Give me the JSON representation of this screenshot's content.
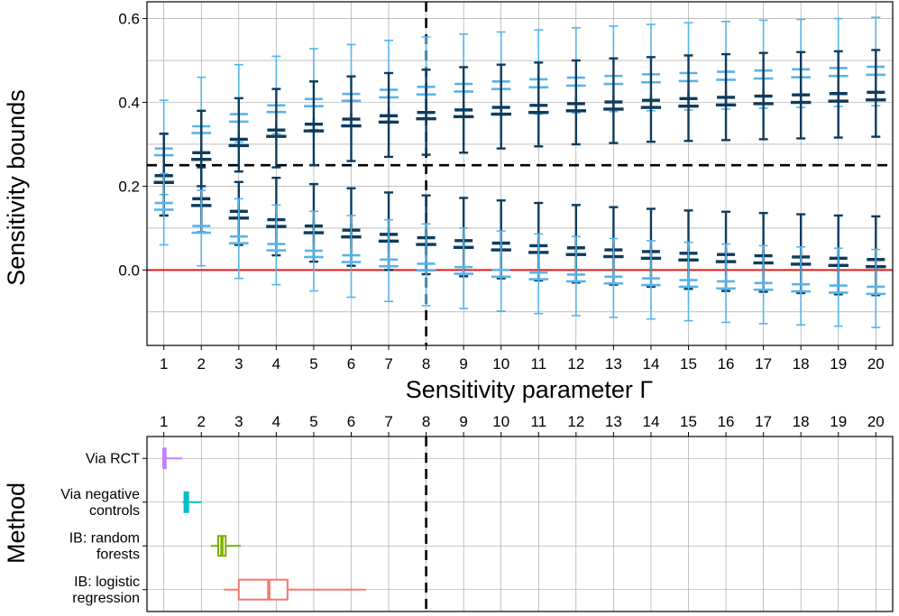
{
  "colors": {
    "dark_series": "#0d3b5c",
    "light_series": "#56b4e9",
    "zero_line": "#e31a1c",
    "reference_line": "#000000",
    "grid": "#9a9a9a",
    "method_colors": [
      "#c77cff",
      "#00bfc4",
      "#7cae00",
      "#f8766d"
    ]
  },
  "chart_data": [
    {
      "type": "box",
      "ylabel": "Sensitivity bounds",
      "xlabel": "Sensitivity parameter Γ",
      "x": [
        1,
        2,
        3,
        4,
        5,
        6,
        7,
        8,
        9,
        10,
        11,
        12,
        13,
        14,
        15,
        16,
        17,
        18,
        19,
        20
      ],
      "xlim": [
        0.55,
        20.45
      ],
      "ylim": [
        -0.18,
        0.64
      ],
      "yticks": [
        0.0,
        0.2,
        0.4,
        0.6
      ],
      "ytick_labels": [
        "0.0",
        "0.2",
        "0.4",
        "0.6"
      ],
      "grid": true,
      "horizontal_lines": [
        {
          "y": 0.0,
          "style": "solid",
          "color": "#e31a1c"
        },
        {
          "y": 0.25,
          "style": "dashed",
          "color": "#000000"
        }
      ],
      "vertical_lines": [
        {
          "x": 8,
          "style": "dashed",
          "color": "#000000"
        }
      ],
      "series": [
        {
          "group": "upper",
          "color": "#56b4e9",
          "boxes": [
            [
              0.405,
              0.275,
              0.29,
              0.305,
              0.18
            ],
            [
              0.46,
              0.328,
              0.343,
              0.358,
              0.28
            ],
            [
              0.49,
              0.355,
              0.372,
              0.388,
              0.305
            ],
            [
              0.51,
              0.378,
              0.393,
              0.41,
              0.325
            ],
            [
              0.528,
              0.392,
              0.408,
              0.425,
              0.335
            ],
            [
              0.538,
              0.405,
              0.42,
              0.438,
              0.345
            ],
            [
              0.548,
              0.413,
              0.43,
              0.447,
              0.355
            ],
            [
              0.556,
              0.42,
              0.437,
              0.455,
              0.36
            ],
            [
              0.563,
              0.427,
              0.444,
              0.462,
              0.365
            ],
            [
              0.568,
              0.433,
              0.45,
              0.468,
              0.37
            ],
            [
              0.573,
              0.437,
              0.455,
              0.473,
              0.372
            ],
            [
              0.578,
              0.441,
              0.459,
              0.477,
              0.375
            ],
            [
              0.582,
              0.445,
              0.463,
              0.481,
              0.378
            ],
            [
              0.586,
              0.449,
              0.467,
              0.485,
              0.38
            ],
            [
              0.59,
              0.452,
              0.47,
              0.488,
              0.382
            ],
            [
              0.593,
              0.455,
              0.473,
              0.491,
              0.384
            ],
            [
              0.596,
              0.458,
              0.476,
              0.495,
              0.386
            ],
            [
              0.598,
              0.461,
              0.479,
              0.498,
              0.388
            ],
            [
              0.6,
              0.464,
              0.482,
              0.501,
              0.39
            ],
            [
              0.603,
              0.467,
              0.485,
              0.505,
              0.392
            ]
          ]
        },
        {
          "group": "upper",
          "color": "#0d3b5c",
          "boxes": [
            [
              0.325,
              0.21,
              0.225,
              0.24,
              0.13
            ],
            [
              0.38,
              0.265,
              0.28,
              0.295,
              0.2
            ],
            [
              0.41,
              0.298,
              0.312,
              0.327,
              0.235
            ],
            [
              0.432,
              0.32,
              0.334,
              0.35,
              0.245
            ],
            [
              0.45,
              0.333,
              0.348,
              0.363,
              0.25
            ],
            [
              0.462,
              0.345,
              0.36,
              0.375,
              0.26
            ],
            [
              0.47,
              0.354,
              0.368,
              0.385,
              0.27
            ],
            [
              0.478,
              0.362,
              0.376,
              0.392,
              0.275
            ],
            [
              0.484,
              0.367,
              0.382,
              0.398,
              0.28
            ],
            [
              0.49,
              0.373,
              0.388,
              0.404,
              0.29
            ],
            [
              0.495,
              0.377,
              0.393,
              0.408,
              0.295
            ],
            [
              0.5,
              0.381,
              0.397,
              0.412,
              0.3
            ],
            [
              0.505,
              0.385,
              0.401,
              0.416,
              0.303
            ],
            [
              0.508,
              0.389,
              0.405,
              0.42,
              0.306
            ],
            [
              0.512,
              0.392,
              0.409,
              0.424,
              0.308
            ],
            [
              0.515,
              0.395,
              0.412,
              0.427,
              0.31
            ],
            [
              0.518,
              0.398,
              0.415,
              0.43,
              0.312
            ],
            [
              0.52,
              0.401,
              0.418,
              0.433,
              0.314
            ],
            [
              0.522,
              0.404,
              0.421,
              0.436,
              0.316
            ],
            [
              0.525,
              0.407,
              0.424,
              0.44,
              0.318
            ]
          ]
        },
        {
          "group": "lower",
          "color": "#0d3b5c",
          "boxes": [
            [
              0.325,
              0.21,
              0.225,
              0.24,
              0.13
            ],
            [
              0.245,
              0.155,
              0.17,
              0.185,
              0.09
            ],
            [
              0.21,
              0.125,
              0.14,
              0.155,
              0.06
            ],
            [
              0.22,
              0.105,
              0.12,
              0.135,
              0.035
            ],
            [
              0.205,
              0.09,
              0.105,
              0.12,
              0.02
            ],
            [
              0.195,
              0.08,
              0.095,
              0.11,
              0.01
            ],
            [
              0.185,
              0.07,
              0.085,
              0.1,
              0.0
            ],
            [
              0.178,
              0.062,
              0.077,
              0.093,
              -0.01
            ],
            [
              0.172,
              0.055,
              0.07,
              0.086,
              -0.015
            ],
            [
              0.166,
              0.049,
              0.064,
              0.08,
              -0.02
            ],
            [
              0.16,
              0.043,
              0.058,
              0.074,
              -0.025
            ],
            [
              0.155,
              0.038,
              0.053,
              0.069,
              -0.03
            ],
            [
              0.15,
              0.033,
              0.048,
              0.064,
              -0.035
            ],
            [
              0.146,
              0.029,
              0.044,
              0.06,
              -0.04
            ],
            [
              0.142,
              0.025,
              0.04,
              0.056,
              -0.045
            ],
            [
              0.139,
              0.021,
              0.037,
              0.052,
              -0.05
            ],
            [
              0.136,
              0.018,
              0.034,
              0.049,
              -0.052
            ],
            [
              0.133,
              0.015,
              0.031,
              0.046,
              -0.055
            ],
            [
              0.13,
              0.012,
              0.028,
              0.043,
              -0.058
            ],
            [
              0.128,
              0.009,
              0.025,
              0.041,
              -0.06
            ]
          ]
        },
        {
          "group": "lower",
          "color": "#56b4e9",
          "boxes": [
            [
              0.23,
              0.145,
              0.16,
              0.18,
              0.06
            ],
            [
              0.19,
              0.09,
              0.105,
              0.12,
              0.01
            ],
            [
              0.17,
              0.065,
              0.08,
              0.095,
              -0.02
            ],
            [
              0.155,
              0.048,
              0.062,
              0.078,
              -0.035
            ],
            [
              0.14,
              0.032,
              0.046,
              0.062,
              -0.05
            ],
            [
              0.13,
              0.02,
              0.035,
              0.05,
              -0.065
            ],
            [
              0.12,
              0.01,
              0.025,
              0.04,
              -0.075
            ],
            [
              0.11,
              0.0,
              0.015,
              0.03,
              -0.085
            ],
            [
              0.1,
              -0.008,
              0.007,
              0.022,
              -0.092
            ],
            [
              0.093,
              -0.015,
              0.0,
              0.015,
              -0.098
            ],
            [
              0.086,
              -0.021,
              -0.006,
              0.009,
              -0.104
            ],
            [
              0.08,
              -0.026,
              -0.011,
              0.004,
              -0.109
            ],
            [
              0.075,
              -0.031,
              -0.016,
              -0.001,
              -0.113
            ],
            [
              0.07,
              -0.035,
              -0.02,
              -0.005,
              -0.117
            ],
            [
              0.066,
              -0.039,
              -0.024,
              -0.009,
              -0.121
            ],
            [
              0.062,
              -0.043,
              -0.027,
              -0.012,
              -0.125
            ],
            [
              0.058,
              -0.046,
              -0.031,
              -0.016,
              -0.128
            ],
            [
              0.055,
              -0.05,
              -0.034,
              -0.019,
              -0.131
            ],
            [
              0.052,
              -0.053,
              -0.037,
              -0.022,
              -0.134
            ],
            [
              0.049,
              -0.056,
              -0.04,
              -0.025,
              -0.137
            ]
          ]
        }
      ]
    },
    {
      "type": "box",
      "orientation": "horizontal",
      "ylabel": "Method",
      "x_ticks": [
        1,
        2,
        3,
        4,
        5,
        6,
        7,
        8,
        9,
        10,
        11,
        12,
        13,
        14,
        15,
        16,
        17,
        18,
        19,
        20
      ],
      "xlim": [
        0.55,
        20.45
      ],
      "vertical_lines": [
        {
          "x": 8,
          "style": "dashed",
          "color": "#000000"
        }
      ],
      "grid": true,
      "categories": [
        [
          "Via RCT"
        ],
        [
          "Via negative",
          "controls"
        ],
        [
          "IB: random",
          "forests"
        ],
        [
          "IB: logistic",
          "regression"
        ]
      ],
      "boxes": [
        {
          "label": "Via RCT",
          "color": "#c77cff",
          "min": 1.0,
          "q1": 1.0,
          "median": 1.0,
          "q3": 1.02,
          "max": 1.5
        },
        {
          "label": "Via negative controls",
          "color": "#00bfc4",
          "min": 1.5,
          "q1": 1.55,
          "median": 1.6,
          "q3": 1.65,
          "max": 2.0
        },
        {
          "label": "IB: random forests",
          "color": "#7cae00",
          "min": 2.25,
          "q1": 2.45,
          "median": 2.55,
          "q3": 2.65,
          "max": 3.05
        },
        {
          "label": "IB: logistic regression",
          "color": "#f8766d",
          "min": 2.6,
          "q1": 3.0,
          "median": 3.8,
          "q3": 4.3,
          "max": 6.4
        }
      ]
    }
  ]
}
